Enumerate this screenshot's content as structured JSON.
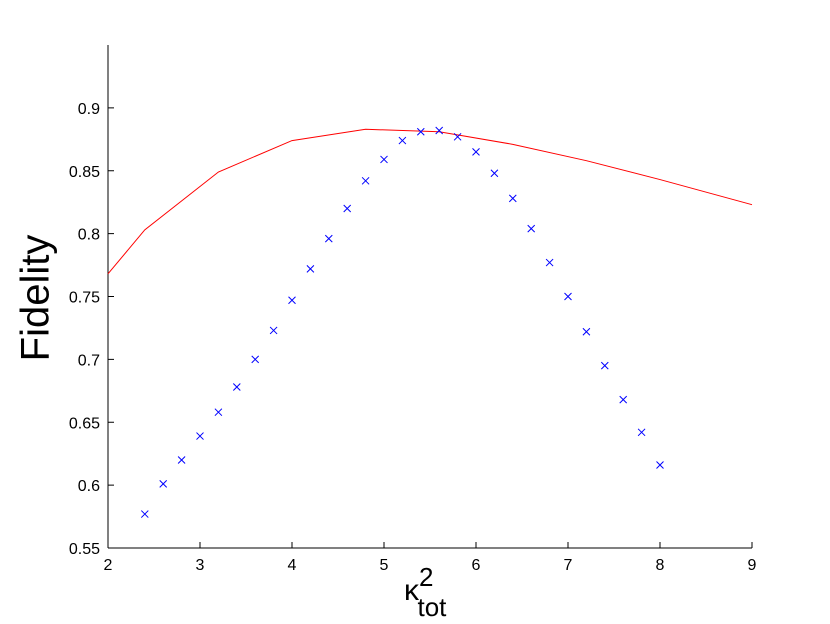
{
  "chart_data": {
    "type": "line",
    "ylabel": "Fidelity",
    "xlabel": {
      "base": "κ",
      "sup": "2",
      "sub": "tot"
    },
    "xlim": [
      2,
      9
    ],
    "xticks": [
      2,
      3,
      4,
      5,
      6,
      7,
      8,
      9
    ],
    "ylim": [
      0.55,
      0.95
    ],
    "yticks": [
      0.55,
      0.6,
      0.65,
      0.7,
      0.75,
      0.8,
      0.85,
      0.9
    ],
    "grid": false,
    "series": [
      {
        "color": "#ff0000",
        "marker": "none",
        "x": [
          2,
          2.4,
          3.2,
          4,
          4.8,
          5.6,
          6.4,
          7.2,
          8,
          9
        ],
        "values": [
          0.768,
          0.803,
          0.849,
          0.874,
          0.883,
          0.881,
          0.871,
          0.858,
          0.843,
          0.823
        ]
      },
      {
        "color": "#0000ff",
        "marker": "x",
        "x": [
          2.4,
          2.6,
          2.8,
          3.0,
          3.2,
          3.4,
          3.6,
          3.8,
          4.0,
          4.2,
          4.4,
          4.6,
          4.8,
          5.0,
          5.2,
          5.4,
          5.6,
          5.8,
          6.0,
          6.2,
          6.4,
          6.6,
          6.8,
          7.0,
          7.2,
          7.4,
          7.6,
          7.8,
          8.0
        ],
        "values": [
          0.577,
          0.601,
          0.62,
          0.639,
          0.658,
          0.678,
          0.7,
          0.723,
          0.747,
          0.772,
          0.796,
          0.82,
          0.842,
          0.859,
          0.874,
          0.881,
          0.882,
          0.877,
          0.865,
          0.848,
          0.828,
          0.804,
          0.777,
          0.75,
          0.722,
          0.695,
          0.668,
          0.642,
          0.616
        ]
      }
    ]
  }
}
